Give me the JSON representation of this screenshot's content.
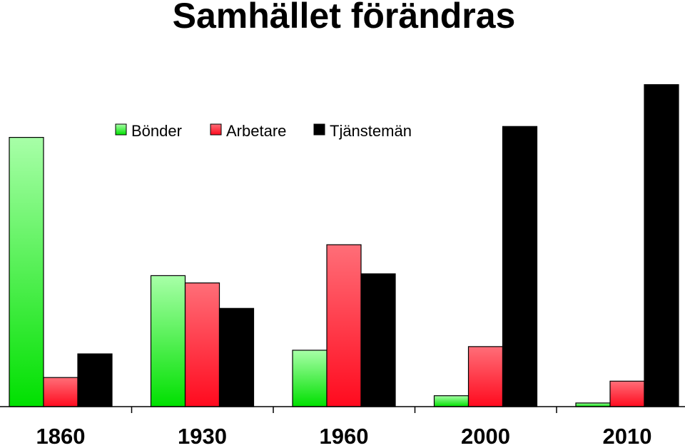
{
  "chart_data": {
    "type": "bar",
    "title": "Samhället förändras",
    "categories": [
      "1860",
      "1930",
      "1960",
      "2000",
      "2010"
    ],
    "series": [
      {
        "name": "Bönder",
        "values": [
          74,
          36,
          15.5,
          3,
          1
        ],
        "color": "#00e000",
        "color_light": "#a8ffa8"
      },
      {
        "name": "Arbetare",
        "values": [
          8,
          34,
          44.5,
          16.5,
          7
        ],
        "color": "#ff0a1e",
        "color_light": "#ff6e78"
      },
      {
        "name": "Tjänstemän",
        "values": [
          14.5,
          27,
          36.5,
          77,
          88.5
        ],
        "color": "#000000",
        "color_light": "#000000"
      }
    ],
    "ylim": [
      0,
      100
    ],
    "xlabel": "",
    "ylabel": "",
    "grid": false,
    "legend_position": "top-left"
  }
}
